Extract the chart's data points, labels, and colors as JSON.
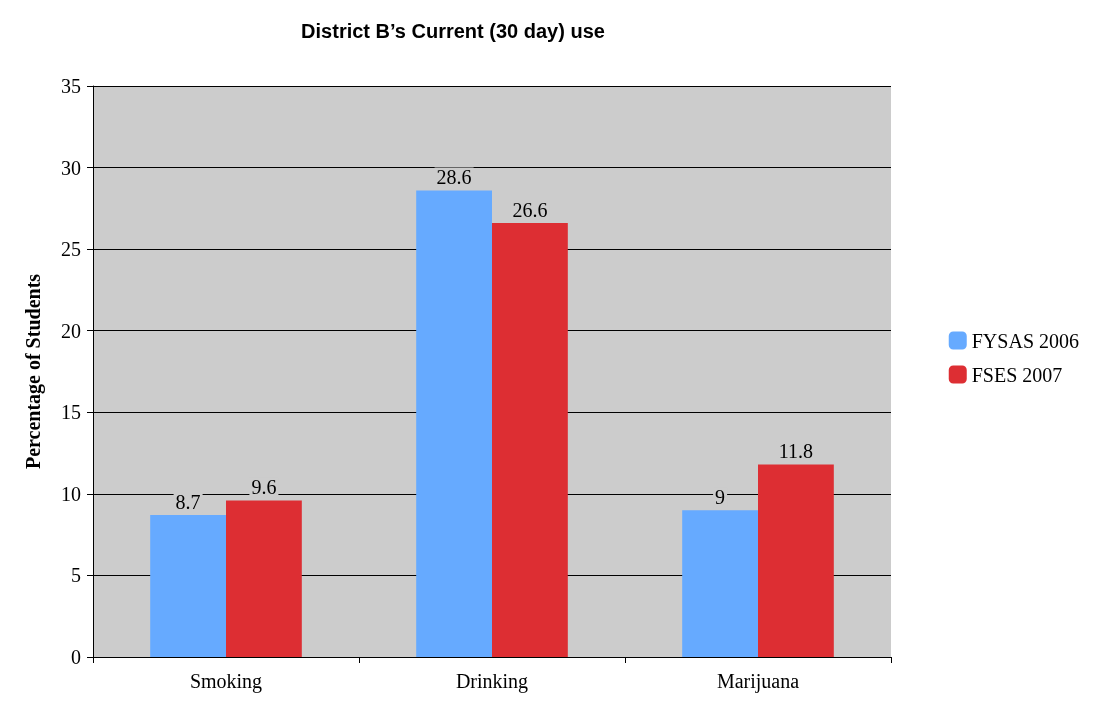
{
  "chart_data": {
    "type": "bar",
    "title": "District B’s Current (30 day) use",
    "ylabel": "Percentage of Students",
    "categories": [
      "Smoking",
      "Drinking",
      "Marijuana"
    ],
    "series": [
      {
        "name": "FYSAS 2006",
        "color": "#66aaff",
        "values": [
          8.7,
          28.6,
          9
        ]
      },
      {
        "name": "FSES 2007",
        "color": "#dd2e33",
        "values": [
          9.6,
          26.6,
          11.8
        ]
      }
    ],
    "ylim": [
      0,
      35
    ],
    "yticks": [
      0,
      5,
      10,
      15,
      20,
      25,
      30,
      35
    ],
    "grid": "y",
    "legend": "right",
    "data_labels": true
  }
}
